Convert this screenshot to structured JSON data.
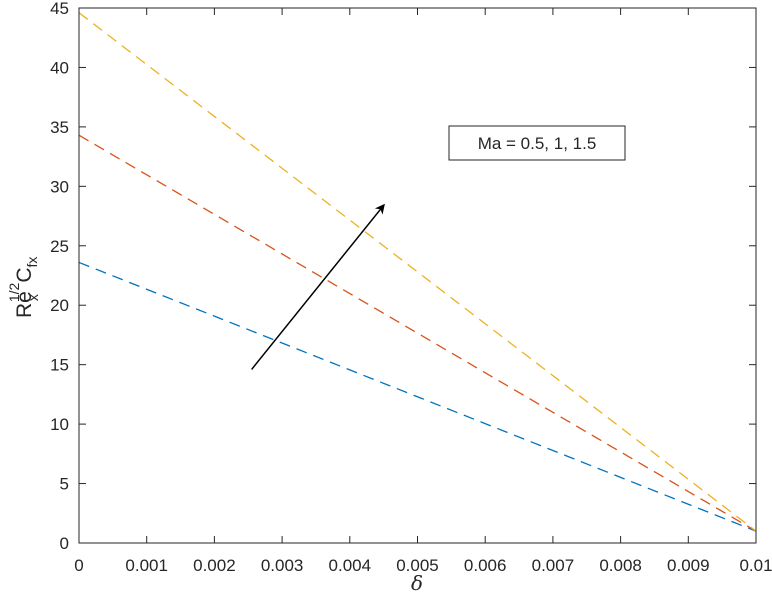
{
  "chart_data": {
    "type": "line",
    "title": "",
    "xlabel": "δ",
    "ylabel": {
      "base": "Re",
      "base_sub": "x",
      "sup": "1/2",
      "c": "C",
      "c_sub": "fx"
    },
    "xlim": [
      0,
      0.01
    ],
    "ylim": [
      0,
      45
    ],
    "xticks": [
      0,
      0.001,
      0.002,
      0.003,
      0.004,
      0.005,
      0.006,
      0.007,
      0.008,
      0.009,
      0.01
    ],
    "xtick_labels": [
      "0",
      "0.001",
      "0.002",
      "0.003",
      "0.004",
      "0.005",
      "0.006",
      "0.007",
      "0.008",
      "0.009",
      "0.01"
    ],
    "yticks": [
      0,
      5,
      10,
      15,
      20,
      25,
      30,
      35,
      40,
      45
    ],
    "ytick_labels": [
      "0",
      "5",
      "10",
      "15",
      "20",
      "25",
      "30",
      "35",
      "40",
      "45"
    ],
    "grid": false,
    "series": [
      {
        "color": "#0072BD",
        "linestyle": "dashed",
        "x": [
          0,
          0.01
        ],
        "y": [
          23.6,
          1.0
        ]
      },
      {
        "color": "#D95319",
        "linestyle": "dashed",
        "x": [
          0,
          0.01
        ],
        "y": [
          34.3,
          1.0
        ]
      },
      {
        "color": "#EDB120",
        "linestyle": "dashed",
        "x": [
          0,
          0.01
        ],
        "y": [
          44.6,
          1.0
        ]
      }
    ],
    "annotation": {
      "text": "Ma = 0.5, 1, 1.5",
      "arrow": {
        "from": [
          0.00255,
          14.6
        ],
        "to": [
          0.0045,
          28.4
        ],
        "color": "#000000"
      }
    }
  }
}
